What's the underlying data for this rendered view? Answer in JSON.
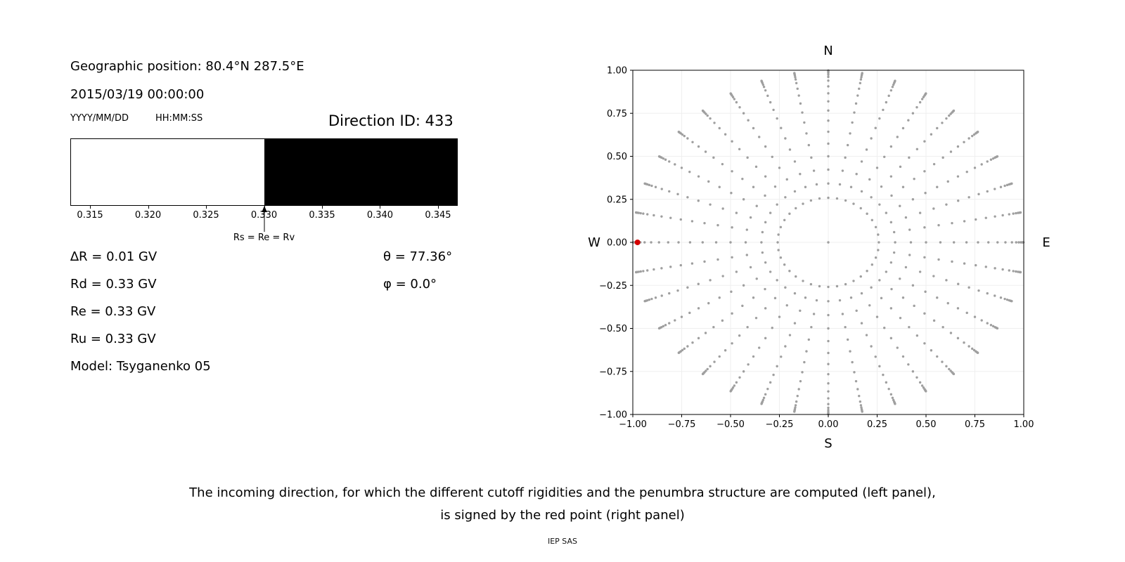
{
  "left_panel": {
    "geo_position": "Geographic position: 80.4°N 287.5°E",
    "datetime": "2015/03/19 00:00:00",
    "date_format_label": "YYYY/MM/DD",
    "time_format_label": "HH:MM:SS",
    "direction_id_label": "Direction ID: 433",
    "rigidity_lines": [
      "∆R = 0.01 GV",
      "Rd = 0.33 GV",
      "Re = 0.33 GV",
      "Ru = 0.33 GV",
      "Model: Tsyganenko 05"
    ],
    "theta_label": "θ = 77.36°",
    "phi_label": "φ = 0.0°"
  },
  "caption": {
    "line1": "The incoming direction, for which the different cutoff rigidities and the penumbra structure are computed (left panel),",
    "line2": "is signed by the red point (right panel)",
    "credit": "IEP SAS"
  },
  "chart_data": [
    {
      "type": "bar",
      "name": "penumbra-structure",
      "orientation": "horizontal-band",
      "xlim": [
        0.3133,
        0.3467
      ],
      "regions": [
        {
          "label": "allowed",
          "from": 0.3133,
          "to": 0.33,
          "color": "#ffffff"
        },
        {
          "label": "forbidden",
          "from": 0.33,
          "to": 0.3467,
          "color": "#000000"
        }
      ],
      "xticks": [
        0.315,
        0.32,
        0.325,
        0.33,
        0.335,
        0.34,
        0.345
      ],
      "xtick_labels": [
        "0.315",
        "0.320",
        "0.325",
        "0.330",
        "0.335",
        "0.340",
        "0.345"
      ],
      "annotation": {
        "text": "Rs = Re = Rv",
        "x": 0.33
      }
    },
    {
      "type": "scatter",
      "name": "incoming-direction-grid",
      "xlim": [
        -1.0,
        1.0
      ],
      "ylim": [
        -1.0,
        1.0
      ],
      "xticks": [
        -1.0,
        -0.75,
        -0.5,
        -0.25,
        0.0,
        0.25,
        0.5,
        0.75,
        1.0
      ],
      "xtick_labels": [
        "−1.00",
        "−0.75",
        "−0.50",
        "−0.25",
        "0.00",
        "0.25",
        "0.50",
        "0.75",
        "1.00"
      ],
      "yticks": [
        -1.0,
        -0.75,
        -0.5,
        -0.25,
        0.0,
        0.25,
        0.5,
        0.75,
        1.0
      ],
      "ytick_labels": [
        "−1.00",
        "−0.75",
        "−0.50",
        "−0.25",
        "0.00",
        "0.25",
        "0.50",
        "0.75",
        "1.00"
      ],
      "compass": {
        "top": "N",
        "bottom": "S",
        "left": "W",
        "right": "E"
      },
      "grid": true,
      "dot_color": "#8f8f8f",
      "direction_grid": {
        "azimuth_step_deg": 10,
        "zenith_angles_deg": [
          15,
          20,
          25,
          30,
          35,
          40,
          45,
          50,
          55,
          60,
          65,
          70,
          74,
          77,
          80,
          82.5,
          85,
          87
        ],
        "radius_mapping": "r = sin(zenith)",
        "center_dot": true
      },
      "red_point": {
        "x": -0.976,
        "y": 0.0,
        "color": "#d40000",
        "label": "selected incoming direction"
      }
    }
  ]
}
